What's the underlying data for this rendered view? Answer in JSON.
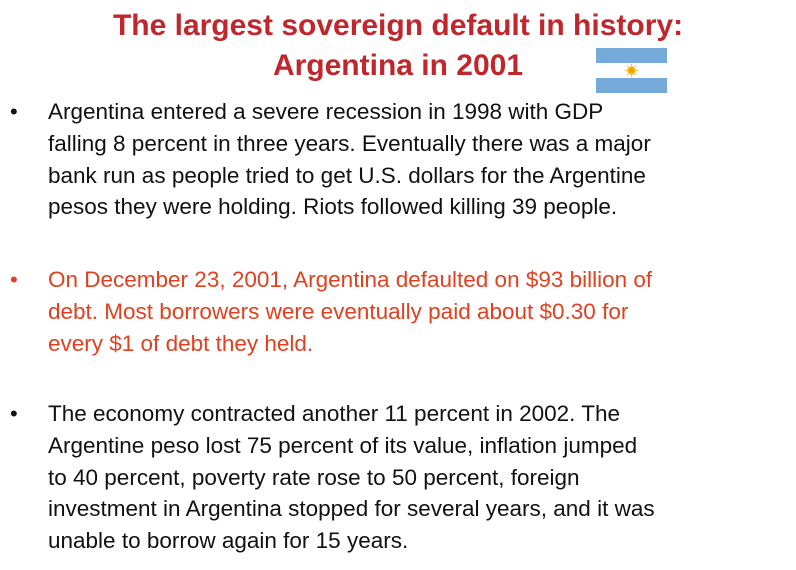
{
  "title": {
    "line1": "The largest sovereign default in history:",
    "line2": "Argentina in 2001"
  },
  "flag": {
    "icon": "argentina-flag-icon",
    "colors": {
      "blue": "#75AADB",
      "white": "#FFFFFF",
      "sun": "#F6B40E"
    }
  },
  "colors": {
    "title": "#C0272D",
    "body": "#111111",
    "highlight": "#E2401E"
  },
  "bullets": [
    {
      "lines": [
        "Argentina entered a severe recession in 1998 with GDP",
        "falling 8 percent in three years. Eventually there was a major",
        "bank run as people tried to get U.S. dollars for the Argentine",
        "pesos they were holding. Riots followed killing 39 people."
      ]
    },
    {
      "lines": [
        "On December 23, 2001, Argentina defaulted on $93 billion of",
        "debt. Most borrowers were eventually paid about $0.30 for",
        "every $1 of debt they held."
      ]
    },
    {
      "lines": [
        "The economy contracted another 11 percent in 2002. The",
        "Argentine peso lost 75 percent of its value, inflation jumped",
        "to 40 percent, poverty rate rose to 50 percent, foreign",
        "investment in Argentina stopped for several years, and it was",
        "unable to borrow again for 15 years."
      ]
    }
  ],
  "bullet_symbol": "•"
}
